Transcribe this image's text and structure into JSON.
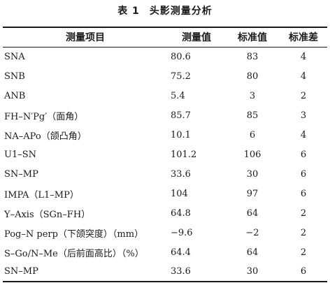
{
  "caption": {
    "number": "表 1",
    "title": "头影测量分析"
  },
  "table": {
    "headers": [
      "测量项目",
      "测量值",
      "标准值",
      "标准差"
    ],
    "rows": [
      {
        "item": "SNA",
        "value": "80.6",
        "standard": "83",
        "sd": "4"
      },
      {
        "item": "SNB",
        "value": "75.2",
        "standard": "80",
        "sd": "4"
      },
      {
        "item": "ANB",
        "value": "5.4",
        "standard": "3",
        "sd": "2"
      },
      {
        "item": "FH–N′Pg′（面角）",
        "value": "85.7",
        "standard": "85",
        "sd": "3"
      },
      {
        "item": "NA–APo（颌凸角）",
        "value": "10.1",
        "standard": "6",
        "sd": "4"
      },
      {
        "item": "U1–SN",
        "value": "101.2",
        "standard": "106",
        "sd": "6"
      },
      {
        "item": "SN–MP",
        "value": "33.6",
        "standard": "30",
        "sd": "6"
      },
      {
        "item": "IMPA（L1–MP）",
        "value": "104",
        "standard": "97",
        "sd": "6"
      },
      {
        "item": "Y–Axis（SGn–FH）",
        "value": "64.8",
        "standard": "64",
        "sd": "2"
      },
      {
        "item": "Pog–N perp（下颌突度）（mm）",
        "value": "−9.6",
        "standard": "−2",
        "sd": "2"
      },
      {
        "item": "S–Go/N–Me（后前面高比）（%）",
        "value": "64.4",
        "standard": "64",
        "sd": "2"
      },
      {
        "item": "SN–MP",
        "value": "33.6",
        "standard": "30",
        "sd": "6"
      }
    ]
  }
}
